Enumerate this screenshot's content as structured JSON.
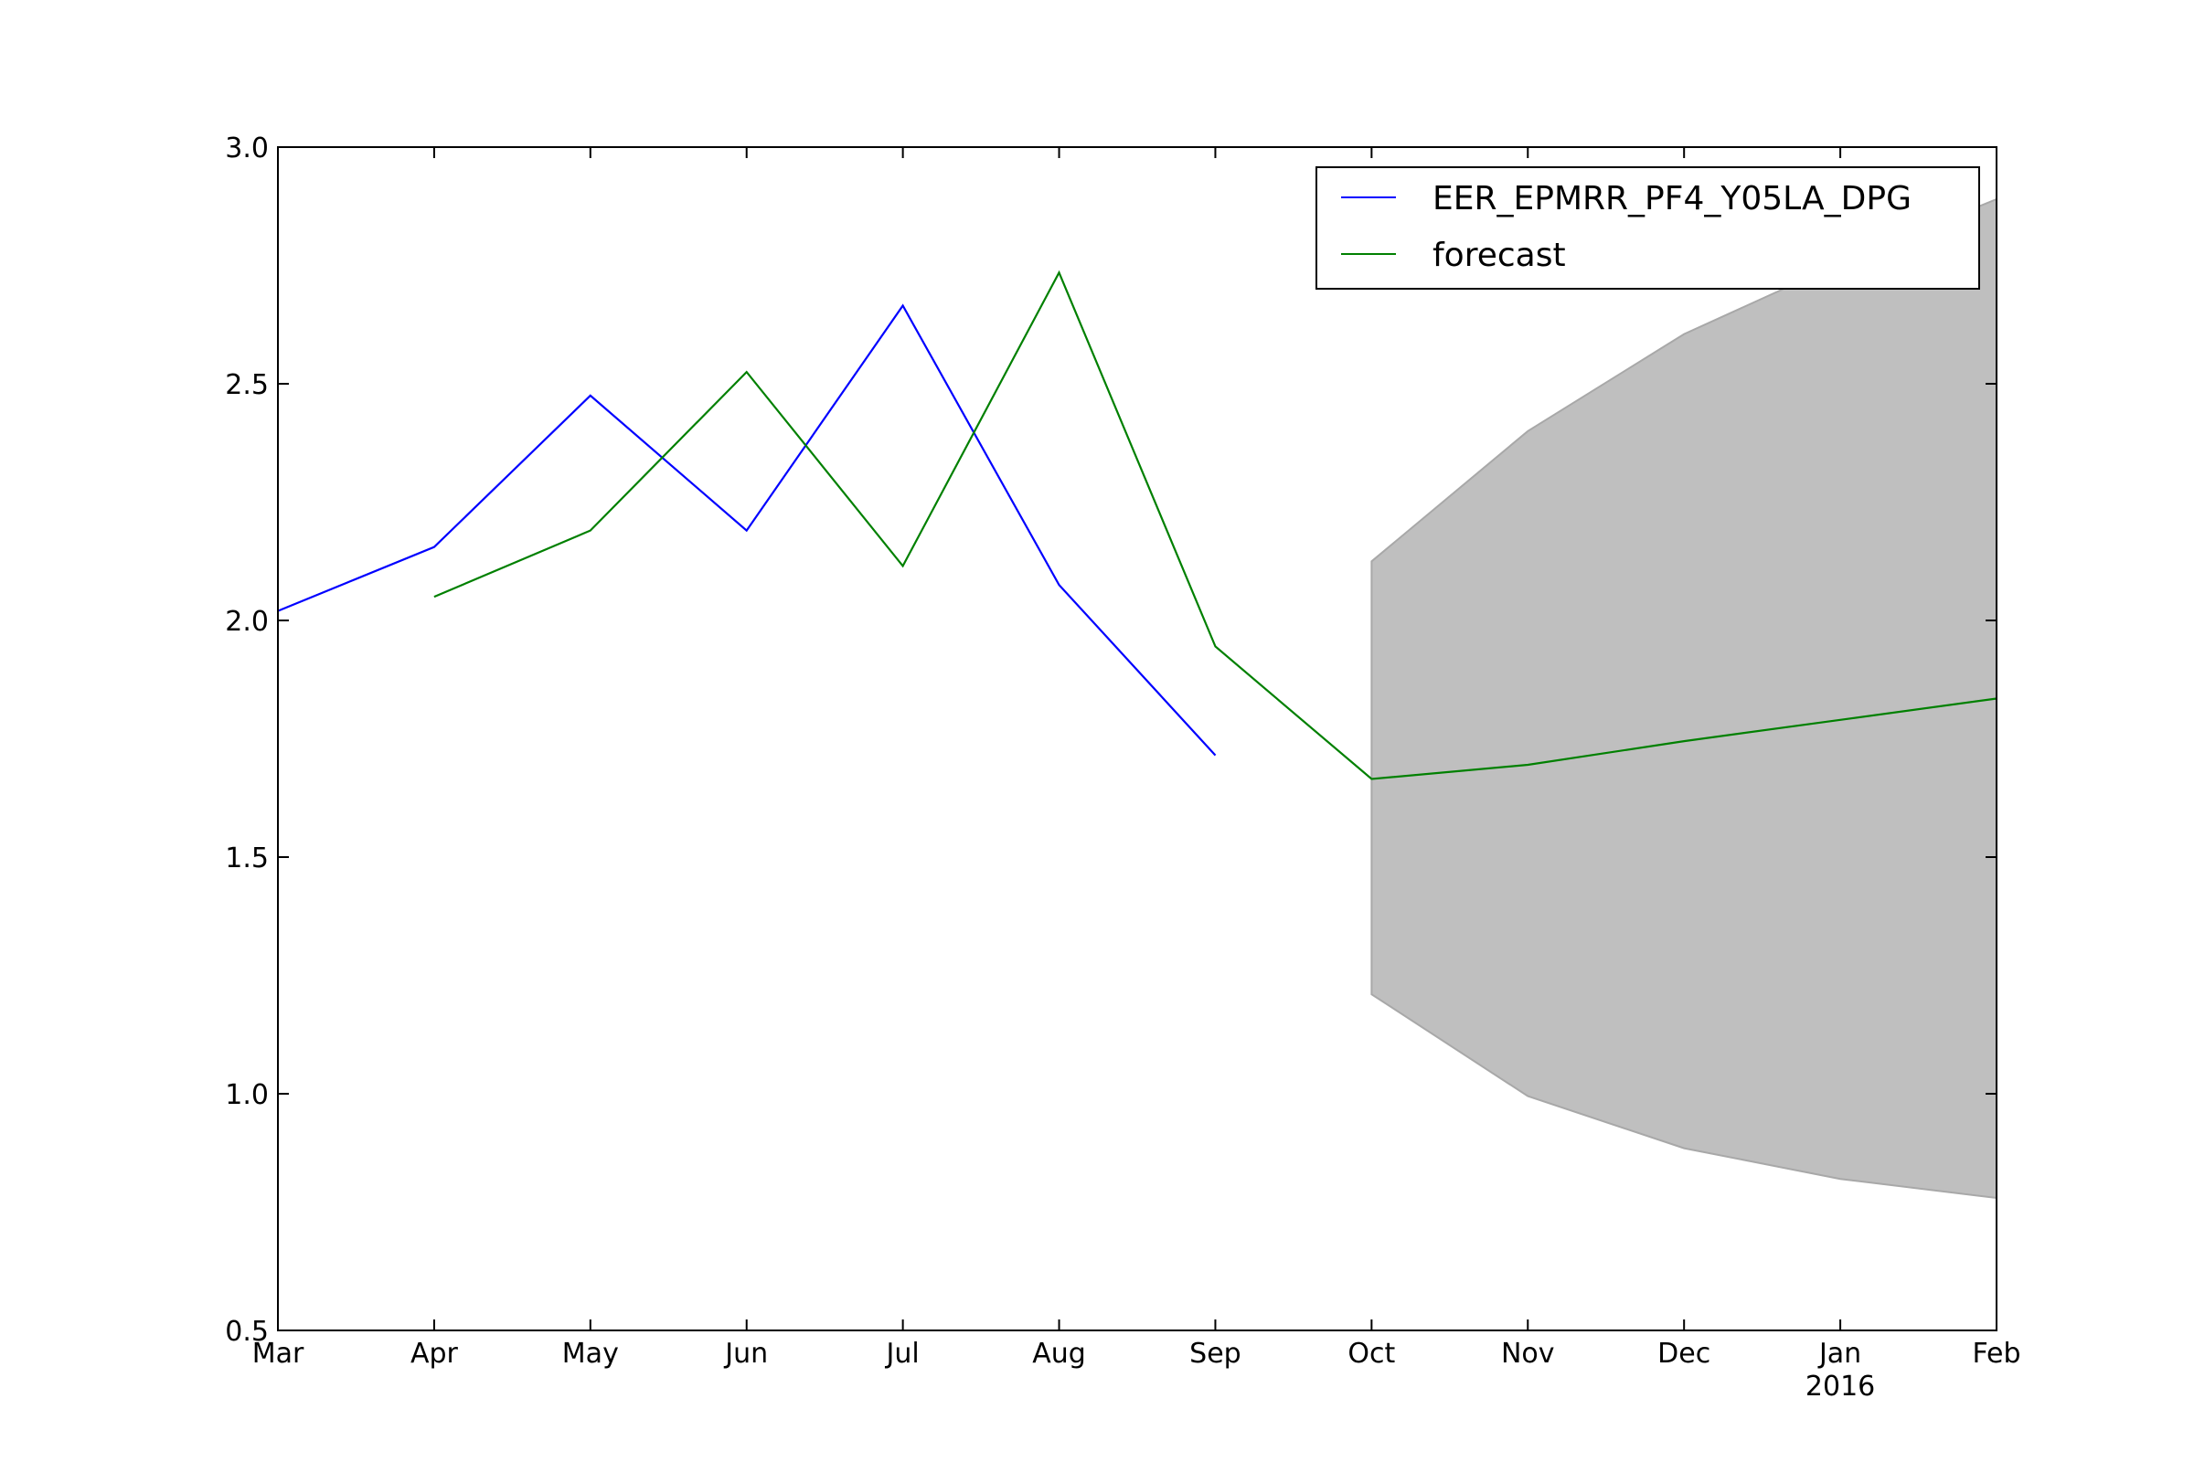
{
  "chart_data": {
    "type": "line",
    "title": "",
    "xlabel": "",
    "ylabel": "",
    "x_tick_labels": [
      "Mar",
      "Apr",
      "May",
      "Jun",
      "Jul",
      "Aug",
      "Sep",
      "Oct",
      "Nov",
      "Dec",
      "Jan",
      "Feb"
    ],
    "x_year_label": {
      "tick": "Jan",
      "text": "2016"
    },
    "ylim": [
      0.5,
      3.0
    ],
    "y_ticks": [
      0.5,
      1.0,
      1.5,
      2.0,
      2.5,
      3.0
    ],
    "y_tick_labels": [
      "0.5",
      "1.0",
      "1.5",
      "2.0",
      "2.5",
      "3.0"
    ],
    "legend": {
      "position": "top-right"
    },
    "series": [
      {
        "name": "EER_EPMRR_PF4_Y05LA_DPG",
        "color": "#0000ff",
        "x": [
          "Mar",
          "Apr",
          "May",
          "Jun",
          "Jul",
          "Aug",
          "Sep"
        ],
        "values": [
          2.02,
          2.155,
          2.475,
          2.19,
          2.665,
          2.075,
          1.715
        ]
      },
      {
        "name": "forecast",
        "color": "#008000",
        "x": [
          "Apr",
          "May",
          "Jun",
          "Jul",
          "Aug",
          "Sep",
          "Oct",
          "Nov",
          "Dec",
          "Jan",
          "Feb"
        ],
        "values": [
          2.05,
          2.19,
          2.525,
          2.115,
          2.735,
          1.945,
          1.665,
          1.695,
          1.745,
          1.79,
          1.835
        ]
      }
    ],
    "confidence_interval": {
      "color": "#bfbfbf",
      "x": [
        "Oct",
        "Nov",
        "Dec",
        "Jan",
        "Feb"
      ],
      "lower": [
        1.21,
        0.995,
        0.885,
        0.82,
        0.78
      ],
      "upper": [
        2.125,
        2.4,
        2.605,
        2.755,
        2.89
      ]
    }
  }
}
